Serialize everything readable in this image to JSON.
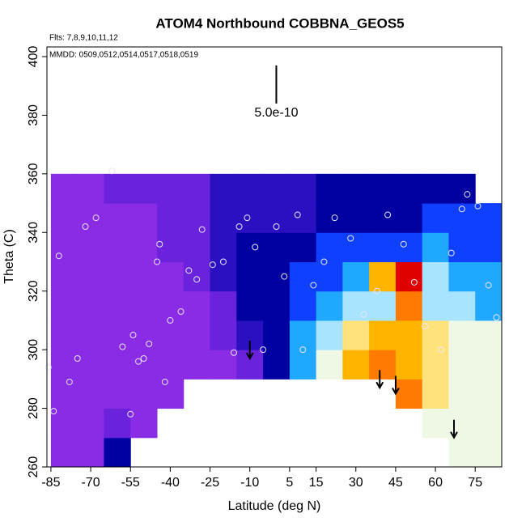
{
  "chart_data": {
    "type": "heatmap",
    "title": "ATOM4 Northbound COBBNA_GEOS5",
    "subtitle": "Flts: 7,8,9,10,11,12",
    "annotation": "MMDD: 0509,0512,0514,0517,0518,0519",
    "x_label": "Latitude (deg N)",
    "y_label": "Theta (C)",
    "xlim": [
      -86.5,
      85
    ],
    "ylim": [
      260,
      403.3
    ],
    "xticks": [
      -85,
      -70,
      -55,
      -40,
      -25,
      -10,
      5,
      15,
      30,
      45,
      60,
      75
    ],
    "yticks": [
      260,
      280,
      300,
      320,
      340,
      360,
      380,
      400
    ],
    "colors": [
      "#8a2be6",
      "#6a22dc",
      "#2a10c0",
      "#0000a0",
      "#1040ff",
      "#20a8ff",
      "#a8e4ff",
      "#eef8e4",
      "#ffe27a",
      "#ffb400",
      "#ff7a00",
      "#e00000"
    ],
    "x": [
      -80,
      -70,
      -60,
      -50,
      -40,
      -30,
      -20,
      -10,
      0,
      10,
      20,
      30,
      40,
      50,
      60,
      70,
      80
    ],
    "y": [
      265,
      275,
      285,
      295,
      305,
      315,
      325,
      335,
      345,
      355
    ],
    "z": [
      [
        0,
        0,
        3,
        null,
        null,
        null,
        null,
        null,
        null,
        null,
        null,
        null,
        null,
        null,
        null,
        7,
        7
      ],
      [
        0,
        0,
        1,
        0,
        null,
        null,
        null,
        null,
        null,
        null,
        null,
        null,
        null,
        null,
        7,
        7,
        7
      ],
      [
        0,
        0,
        0,
        0,
        0,
        null,
        null,
        null,
        null,
        null,
        null,
        null,
        null,
        10,
        8,
        7,
        7
      ],
      [
        0,
        0,
        0,
        0,
        0,
        0,
        0,
        1,
        3,
        5,
        7,
        9,
        10,
        9,
        8,
        7,
        7
      ],
      [
        0,
        0,
        0,
        0,
        0,
        0,
        1,
        2,
        3,
        5,
        6,
        8,
        9,
        9,
        8,
        7,
        7
      ],
      [
        0,
        0,
        0,
        0,
        0,
        0,
        1,
        3,
        3,
        4,
        5,
        6,
        6,
        10,
        6,
        6,
        5
      ],
      [
        0,
        0,
        0,
        0,
        0,
        1,
        2,
        3,
        3,
        4,
        4,
        5,
        9,
        11,
        6,
        5,
        5
      ],
      [
        0,
        0,
        0,
        0,
        1,
        1,
        2,
        3,
        3,
        3,
        4,
        4,
        4,
        4,
        5,
        4,
        4
      ],
      [
        0,
        0,
        0,
        0,
        1,
        1,
        2,
        2,
        2,
        2,
        3,
        3,
        3,
        3,
        4,
        4,
        4
      ],
      [
        0,
        0,
        1,
        1,
        1,
        1,
        2,
        2,
        2,
        2,
        3,
        3,
        3,
        3,
        3,
        3,
        null
      ]
    ],
    "points": {
      "x": [
        -86,
        -84,
        -82,
        -78,
        -75,
        -72,
        -68,
        -62,
        -58,
        -55,
        -54,
        -52,
        -50,
        -48,
        -45,
        -44,
        -42,
        -40,
        -36,
        -33,
        -30,
        -28,
        -24,
        -20,
        -16,
        -14,
        -11,
        -8,
        -5,
        0,
        3,
        8,
        10,
        14,
        18,
        22,
        28,
        33,
        38,
        42,
        48,
        52,
        56,
        62,
        66,
        70,
        72,
        76,
        80,
        83
      ],
      "y": [
        294,
        279,
        332,
        289,
        297,
        342,
        345,
        361,
        301,
        278,
        305,
        296,
        297,
        302,
        330,
        336,
        289,
        310,
        313,
        327,
        324,
        341,
        329,
        330,
        299,
        342,
        345,
        335,
        300,
        342,
        325,
        346,
        300,
        322,
        330,
        345,
        338,
        312,
        320,
        346,
        336,
        323,
        308,
        300,
        333,
        348,
        353,
        349,
        322,
        311
      ]
    },
    "arrows": {
      "x": [
        -10,
        39,
        45,
        67
      ],
      "y": [
        297,
        287,
        285,
        270
      ]
    },
    "scale_bar": {
      "label": "5.0e-10",
      "x": 0,
      "y": [
        384,
        397
      ]
    }
  }
}
